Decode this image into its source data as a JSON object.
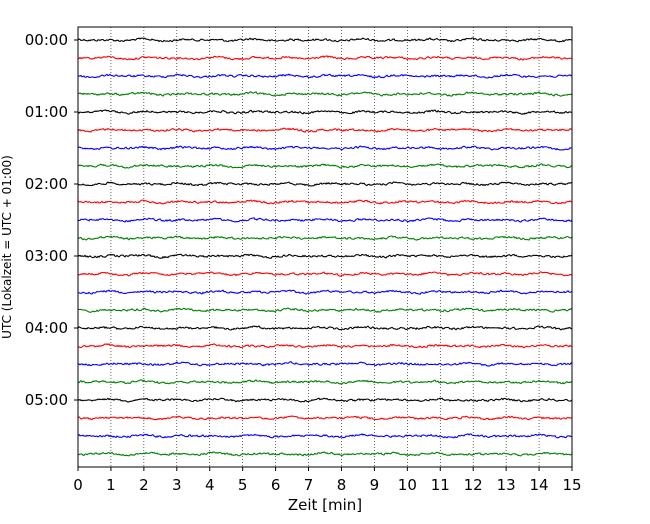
{
  "chart_data": {
    "type": "line",
    "title": "",
    "xlabel": "Zeit  [min]",
    "ylabel": "UTC (Lokalzeit = UTC + 01:00)",
    "xlim": [
      0,
      15
    ],
    "x_ticks": [
      "0",
      "1",
      "2",
      "3",
      "4",
      "5",
      "6",
      "7",
      "8",
      "9",
      "10",
      "11",
      "12",
      "13",
      "14",
      "15"
    ],
    "y_ticks": [
      "00:00",
      "01:00",
      "02:00",
      "03:00",
      "04:00",
      "05:00"
    ],
    "grid": "vertical dotted lines at each minute",
    "trace_interval_min": 15,
    "trace_count": 24,
    "trace_colors": [
      "#000000",
      "#ff0000",
      "#0000ff",
      "#007f00"
    ],
    "signal": "continuous seismogram noise, roughly constant amplitude in every trace"
  }
}
